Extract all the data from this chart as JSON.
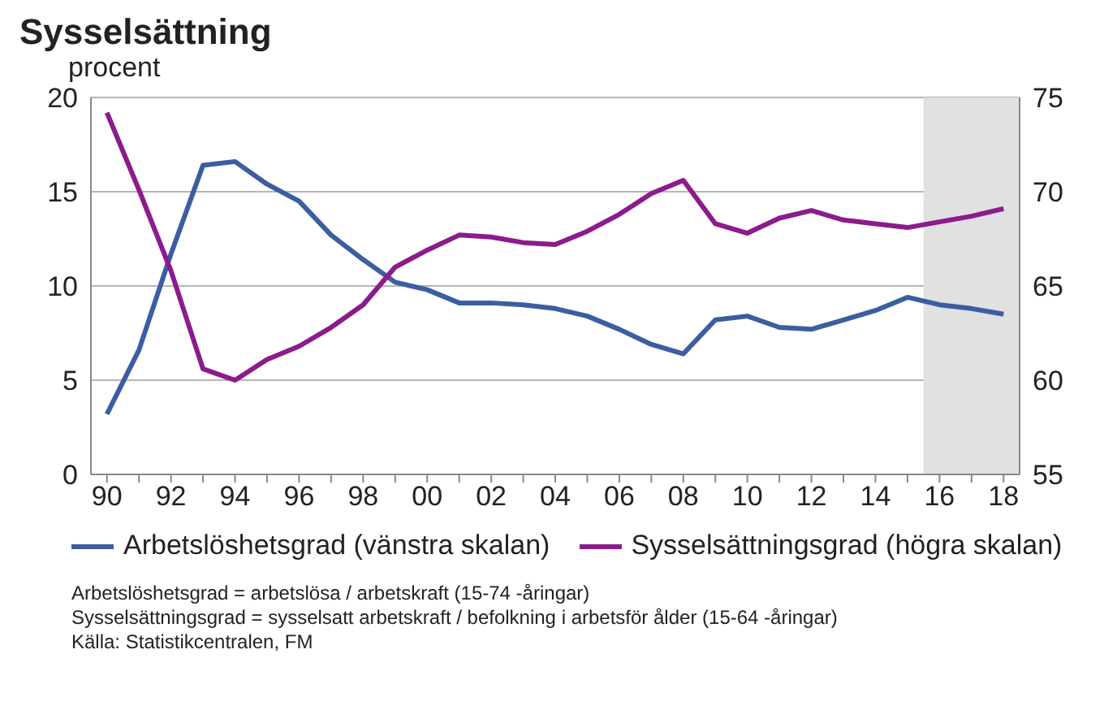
{
  "chart_data": {
    "type": "line",
    "title": "Sysselsättning",
    "ylabel": "procent",
    "x": [
      1990,
      1991,
      1992,
      1993,
      1994,
      1995,
      1996,
      1997,
      1998,
      1999,
      2000,
      2001,
      2002,
      2003,
      2004,
      2005,
      2006,
      2007,
      2008,
      2009,
      2010,
      2011,
      2012,
      2013,
      2014,
      2015,
      2016,
      2017,
      2018
    ],
    "series": [
      {
        "name": "Arbetslöshetsgrad (vänstra skalan)",
        "color": "#3b5ea1",
        "values": [
          3.2,
          6.6,
          11.7,
          16.4,
          16.6,
          15.4,
          14.5,
          12.7,
          11.4,
          10.2,
          9.8,
          9.1,
          9.1,
          9.0,
          8.8,
          8.4,
          7.7,
          6.9,
          6.4,
          8.2,
          8.4,
          7.8,
          7.7,
          8.2,
          8.7,
          9.4,
          9.0,
          8.8,
          8.5
        ]
      },
      {
        "name": "Sysselsättningsgrad (högra skalan)",
        "color": "#8c1b8c",
        "axis": "y2",
        "values": [
          74.2,
          70.1,
          65.8,
          60.6,
          60.0,
          61.1,
          61.8,
          62.8,
          64.0,
          66.0,
          66.9,
          67.7,
          67.6,
          67.3,
          67.2,
          67.9,
          68.8,
          69.9,
          70.6,
          68.3,
          67.8,
          68.6,
          69.0,
          68.5,
          68.3,
          68.1,
          68.4,
          68.7,
          69.1
        ]
      }
    ],
    "xlim": [
      1989.5,
      2018.5
    ],
    "xticks": [
      {
        "value": 1990,
        "label": "90"
      },
      {
        "value": 1991,
        "label": null
      },
      {
        "value": 1992,
        "label": "92"
      },
      {
        "value": 1993,
        "label": null
      },
      {
        "value": 1994,
        "label": "94"
      },
      {
        "value": 1995,
        "label": null
      },
      {
        "value": 1996,
        "label": "96"
      },
      {
        "value": 1997,
        "label": null
      },
      {
        "value": 1998,
        "label": "98"
      },
      {
        "value": 1999,
        "label": null
      },
      {
        "value": 2000,
        "label": "00"
      },
      {
        "value": 2001,
        "label": null
      },
      {
        "value": 2002,
        "label": "02"
      },
      {
        "value": 2003,
        "label": null
      },
      {
        "value": 2004,
        "label": "04"
      },
      {
        "value": 2005,
        "label": null
      },
      {
        "value": 2006,
        "label": "06"
      },
      {
        "value": 2007,
        "label": null
      },
      {
        "value": 2008,
        "label": "08"
      },
      {
        "value": 2009,
        "label": null
      },
      {
        "value": 2010,
        "label": "10"
      },
      {
        "value": 2011,
        "label": null
      },
      {
        "value": 2012,
        "label": "12"
      },
      {
        "value": 2013,
        "label": null
      },
      {
        "value": 2014,
        "label": "14"
      },
      {
        "value": 2015,
        "label": null
      },
      {
        "value": 2016,
        "label": "16"
      },
      {
        "value": 2017,
        "label": null
      },
      {
        "value": 2018,
        "label": "18"
      }
    ],
    "ylim": [
      0,
      20
    ],
    "yticks": [
      0,
      5,
      10,
      15,
      20
    ],
    "y2lim": [
      55,
      75
    ],
    "y2ticks": [
      55,
      60,
      65,
      70,
      75
    ],
    "bands": [
      {
        "axis": "x",
        "from": 2015.5,
        "to": 2018.5,
        "color": "#e1e1e1"
      }
    ],
    "grid": "y",
    "legend": "bottom",
    "marker": "none",
    "line_style": "solid",
    "annotations": [
      "Arbetslöshetsgrad = arbetslösa / arbetskraft (15-74 -åringar)",
      "Sysselsättningsgrad = sysselsatt arbetskraft / befolkning i arbetsför ålder  (15-64 -åringar)",
      "Källa: Statistikcentralen, FM"
    ]
  }
}
